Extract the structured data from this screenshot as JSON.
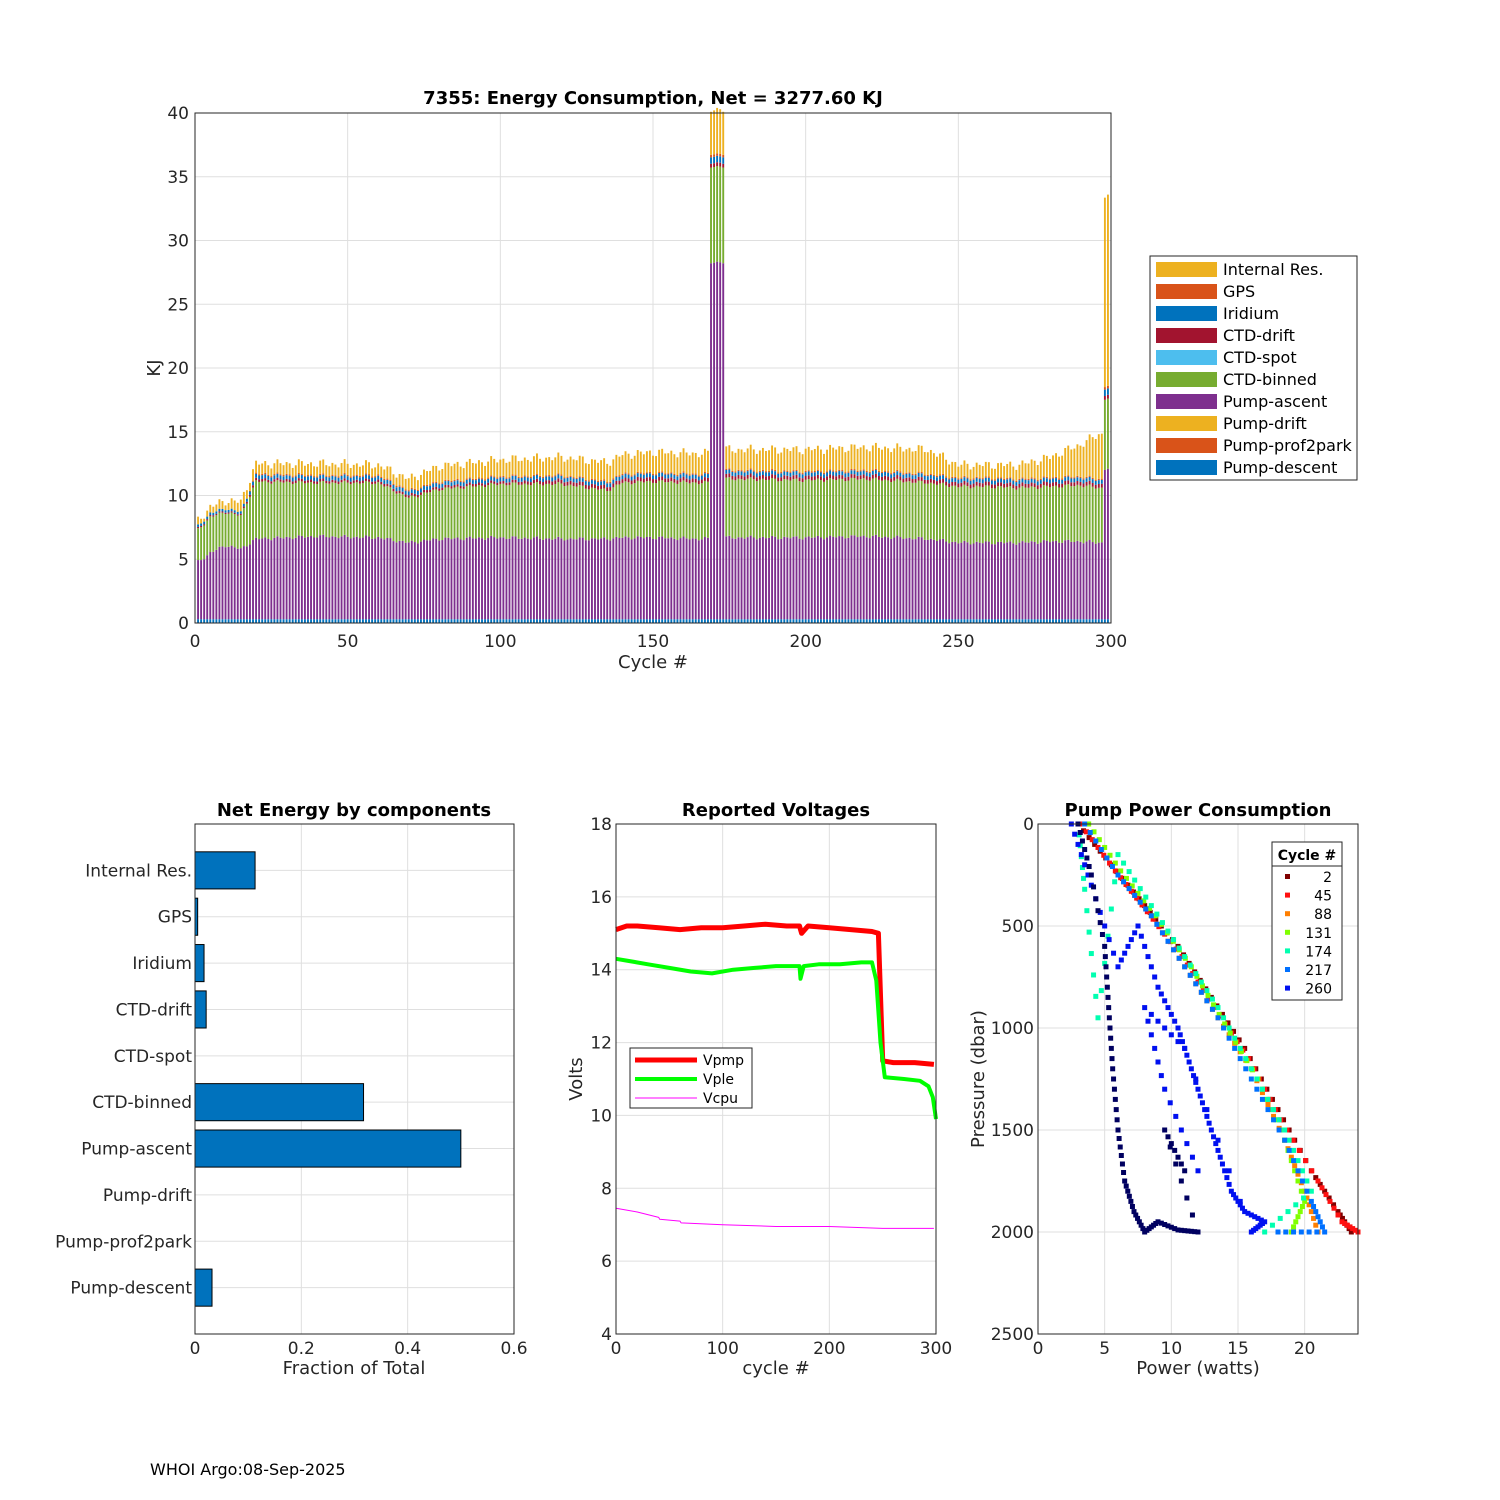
{
  "footer": "WHOI Argo:08-Sep-2025",
  "colors": {
    "internal_res": "#EDB120",
    "gps": "#D95319",
    "iridium": "#0072BD",
    "ctd_drift": "#A2142F",
    "ctd_spot": "#4DBEEE",
    "ctd_binned": "#77AC30",
    "pump_ascent": "#7E2F8E",
    "pump_drift": "#EDB120",
    "pump_prof2park": "#D95319",
    "pump_descent": "#0072BD",
    "vpmp": "#FF0000",
    "vple": "#00FF00",
    "vcpu": "#FF00FF",
    "hbar": "#0072BD"
  },
  "chart_data": [
    {
      "id": "energy",
      "type": "bar",
      "stacked": true,
      "title": "7355: Energy Consumption,  Net = 3277.60 KJ",
      "xlabel": "Cycle #",
      "ylabel": "KJ",
      "xlim": [
        0,
        300
      ],
      "ylim": [
        0,
        40
      ],
      "xticks": [
        0,
        50,
        100,
        150,
        200,
        250,
        300
      ],
      "yticks": [
        0,
        5,
        10,
        15,
        20,
        25,
        30,
        35,
        40
      ],
      "grid": true,
      "legend_position": "outside-right",
      "legend": [
        "Internal Res.",
        "GPS",
        "Iridium",
        "CTD-drift",
        "CTD-spot",
        "CTD-binned",
        "Pump-ascent",
        "Pump-drift",
        "Pump-prof2park",
        "Pump-descent"
      ],
      "series_profile": {
        "cycles": [
          1,
          5,
          10,
          15,
          20,
          40,
          60,
          70,
          80,
          100,
          120,
          135,
          140,
          150,
          165,
          172,
          175,
          200,
          220,
          240,
          250,
          260,
          270,
          280,
          290,
          296,
          299
        ],
        "Pump-descent": [
          0.3,
          0.3,
          0.3,
          0.3,
          0.3,
          0.3,
          0.3,
          0.3,
          0.3,
          0.3,
          0.3,
          0.3,
          0.3,
          0.3,
          0.3,
          0.3,
          0.3,
          0.3,
          0.3,
          0.3,
          0.3,
          0.3,
          0.3,
          0.3,
          0.3,
          0.3,
          0.3
        ],
        "Pump-ascent": [
          4.5,
          5.2,
          5.8,
          5.5,
          6.3,
          6.5,
          6.4,
          6.0,
          6.3,
          6.4,
          6.3,
          6.3,
          6.4,
          6.4,
          6.3,
          28.0,
          6.4,
          6.4,
          6.5,
          6.3,
          6.0,
          6.0,
          6.0,
          6.1,
          6.1,
          6.0,
          11.8
        ],
        "CTD-binned": [
          2.5,
          2.8,
          2.6,
          2.6,
          4.5,
          4.2,
          4.3,
          3.5,
          3.9,
          4.2,
          4.3,
          3.8,
          4.3,
          4.4,
          4.4,
          7.5,
          4.6,
          4.5,
          4.5,
          4.4,
          4.4,
          4.4,
          4.3,
          4.3,
          4.4,
          4.3,
          5.5
        ],
        "CTD-drift": [
          0.1,
          0.1,
          0.1,
          0.1,
          0.2,
          0.2,
          0.2,
          0.2,
          0.2,
          0.2,
          0.3,
          0.3,
          0.3,
          0.3,
          0.3,
          0.3,
          0.3,
          0.3,
          0.3,
          0.3,
          0.3,
          0.3,
          0.3,
          0.3,
          0.3,
          0.3,
          0.3
        ],
        "Iridium": [
          0.2,
          0.2,
          0.2,
          0.2,
          0.3,
          0.3,
          0.3,
          0.3,
          0.3,
          0.3,
          0.3,
          0.3,
          0.3,
          0.3,
          0.3,
          0.5,
          0.3,
          0.3,
          0.3,
          0.3,
          0.3,
          0.3,
          0.3,
          0.3,
          0.3,
          0.3,
          0.5
        ],
        "GPS": [
          0.0,
          0.0,
          0.0,
          0.0,
          0.1,
          0.1,
          0.1,
          0.1,
          0.1,
          0.1,
          0.1,
          0.1,
          0.1,
          0.1,
          0.1,
          0.2,
          0.1,
          0.1,
          0.1,
          0.1,
          0.1,
          0.1,
          0.1,
          0.1,
          0.1,
          0.1,
          0.2
        ],
        "Internal Res.": [
          0.4,
          0.5,
          0.6,
          0.8,
          0.8,
          0.9,
          0.8,
          0.9,
          1.2,
          1.3,
          1.4,
          1.5,
          1.5,
          1.6,
          1.6,
          3.5,
          1.6,
          1.7,
          1.8,
          1.9,
          1.0,
          1.0,
          1.1,
          1.6,
          2.5,
          3.5,
          15.0
        ]
      }
    },
    {
      "id": "net",
      "type": "bar",
      "orientation": "horizontal",
      "title": "Net Energy by components",
      "xlabel": "Fraction of Total",
      "xlim": [
        0,
        0.6
      ],
      "xticks": [
        0,
        0.2,
        0.4,
        0.6
      ],
      "xticklabels": [
        "0",
        "0.2",
        "0.4",
        "0.6"
      ],
      "grid": true,
      "categories": [
        "Internal Res.",
        "GPS",
        "Iridium",
        "CTD-drift",
        "CTD-spot",
        "CTD-binned",
        "Pump-ascent",
        "Pump-drift",
        "Pump-prof2park",
        "Pump-descent"
      ],
      "values": [
        0.113,
        0.005,
        0.017,
        0.021,
        0.0,
        0.317,
        0.5,
        0.0,
        0.0,
        0.032
      ]
    },
    {
      "id": "volt",
      "type": "line",
      "title": "Reported Voltages",
      "xlabel": "cycle #",
      "ylabel": "Volts",
      "xlim": [
        0,
        300
      ],
      "ylim": [
        4,
        18
      ],
      "xticks": [
        0,
        100,
        200,
        300
      ],
      "yticks": [
        4,
        6,
        8,
        10,
        12,
        14,
        16,
        18
      ],
      "grid": true,
      "legend_position": "center-left",
      "series": [
        {
          "name": "Vpmp",
          "x": [
            0,
            10,
            20,
            40,
            60,
            80,
            100,
            120,
            140,
            160,
            172,
            174,
            180,
            200,
            220,
            240,
            246,
            250,
            260,
            280,
            298
          ],
          "y": [
            15.1,
            15.2,
            15.2,
            15.15,
            15.1,
            15.15,
            15.15,
            15.2,
            15.25,
            15.2,
            15.2,
            15.0,
            15.2,
            15.15,
            15.1,
            15.05,
            15.0,
            11.5,
            11.45,
            11.45,
            11.4
          ]
        },
        {
          "name": "Vple",
          "x": [
            0,
            10,
            30,
            50,
            70,
            90,
            110,
            130,
            150,
            172,
            173,
            176,
            190,
            210,
            230,
            240,
            244,
            248,
            252,
            270,
            285,
            293,
            297,
            300
          ],
          "y": [
            14.3,
            14.25,
            14.15,
            14.05,
            13.95,
            13.9,
            14.0,
            14.05,
            14.1,
            14.1,
            13.75,
            14.1,
            14.15,
            14.15,
            14.2,
            14.2,
            13.7,
            12.0,
            11.05,
            11.0,
            10.95,
            10.8,
            10.5,
            9.9
          ]
        },
        {
          "name": "Vcpu",
          "x": [
            0,
            20,
            40,
            41,
            60,
            61,
            100,
            150,
            200,
            250,
            298
          ],
          "y": [
            7.45,
            7.35,
            7.2,
            7.15,
            7.1,
            7.05,
            7.0,
            6.95,
            6.95,
            6.9,
            6.9
          ]
        }
      ]
    },
    {
      "id": "pump",
      "type": "scatter",
      "title": "Pump Power Consumption",
      "xlabel": "Power (watts)",
      "ylabel": "Pressure (dbar)",
      "xlim": [
        0,
        24
      ],
      "ylim": [
        0,
        2500
      ],
      "y_reversed": true,
      "xticks": [
        0,
        5,
        10,
        15,
        20
      ],
      "yticks": [
        0,
        500,
        1000,
        1500,
        2000,
        2500
      ],
      "grid": true,
      "legend_title": "Cycle #",
      "legend_position": "top-right",
      "series": [
        {
          "name": "2",
          "color": "#800000",
          "x": [
            3.0,
            5.5,
            8.0,
            10.5,
            13.0,
            15.5,
            18.0,
            20.5,
            22.5,
            23.5
          ],
          "y": [
            0,
            200,
            400,
            600,
            850,
            1100,
            1400,
            1700,
            1900,
            2000
          ]
        },
        {
          "name": "45",
          "color": "#FF1010",
          "x": [
            3.2,
            5.8,
            8.2,
            10.8,
            13.2,
            15.8,
            18.2,
            21.0,
            22.8,
            24.0
          ],
          "y": [
            0,
            230,
            430,
            650,
            900,
            1150,
            1450,
            1750,
            1950,
            2000
          ]
        },
        {
          "name": "88",
          "color": "#FF7F00",
          "x": [
            3.5,
            6.0,
            8.5,
            11.0,
            13.5,
            16.0,
            18.5,
            20.0,
            21.0
          ],
          "y": [
            0,
            250,
            450,
            700,
            950,
            1200,
            1550,
            1800,
            2000
          ]
        },
        {
          "name": "131",
          "color": "#80FF00",
          "x": [
            3.8,
            6.2,
            8.8,
            11.5,
            14.0,
            16.5,
            18.5,
            20.0,
            19.0
          ],
          "y": [
            0,
            230,
            450,
            700,
            980,
            1250,
            1550,
            1850,
            2000
          ]
        },
        {
          "name": "174",
          "color": "#00FFB0",
          "x": [
            3.0,
            3.5,
            4.5,
            6.0,
            8.5,
            11.0,
            13.5,
            16.0,
            18.5,
            20.5,
            17.0
          ],
          "y": [
            0,
            320,
            950,
            150,
            400,
            650,
            900,
            1200,
            1500,
            1800,
            2000
          ]
        },
        {
          "name": "217",
          "color": "#0070FF",
          "x": [
            3.5,
            6.0,
            8.5,
            11.0,
            13.5,
            16.0,
            18.5,
            20.5,
            21.5,
            18.0
          ],
          "y": [
            0,
            250,
            450,
            700,
            950,
            1250,
            1550,
            1850,
            2000,
            2000
          ]
        },
        {
          "name": "260",
          "color": "#0010F0",
          "x": [
            2.5,
            4.0,
            6.0,
            7.5,
            9.0,
            10.5,
            11.5,
            12.5,
            13.5,
            14.5,
            15.5,
            17.0,
            16.0,
            11.0,
            8.0,
            9.5,
            12.0
          ],
          "y": [
            0,
            300,
            700,
            500,
            800,
            1000,
            1200,
            1400,
            1600,
            1800,
            1900,
            1950,
            2000,
            1100,
            900,
            1300,
            1700
          ]
        },
        {
          "name": "",
          "color": "#000060",
          "x": [
            3.0,
            4.0,
            5.0,
            5.3,
            5.6,
            6.0,
            6.5,
            7.2,
            8.0,
            9.0,
            10.5,
            12.0,
            9.5,
            11.0
          ],
          "y": [
            0,
            250,
            600,
            900,
            1200,
            1500,
            1750,
            1900,
            2000,
            1950,
            1990,
            2000,
            1500,
            1700
          ]
        }
      ]
    }
  ]
}
